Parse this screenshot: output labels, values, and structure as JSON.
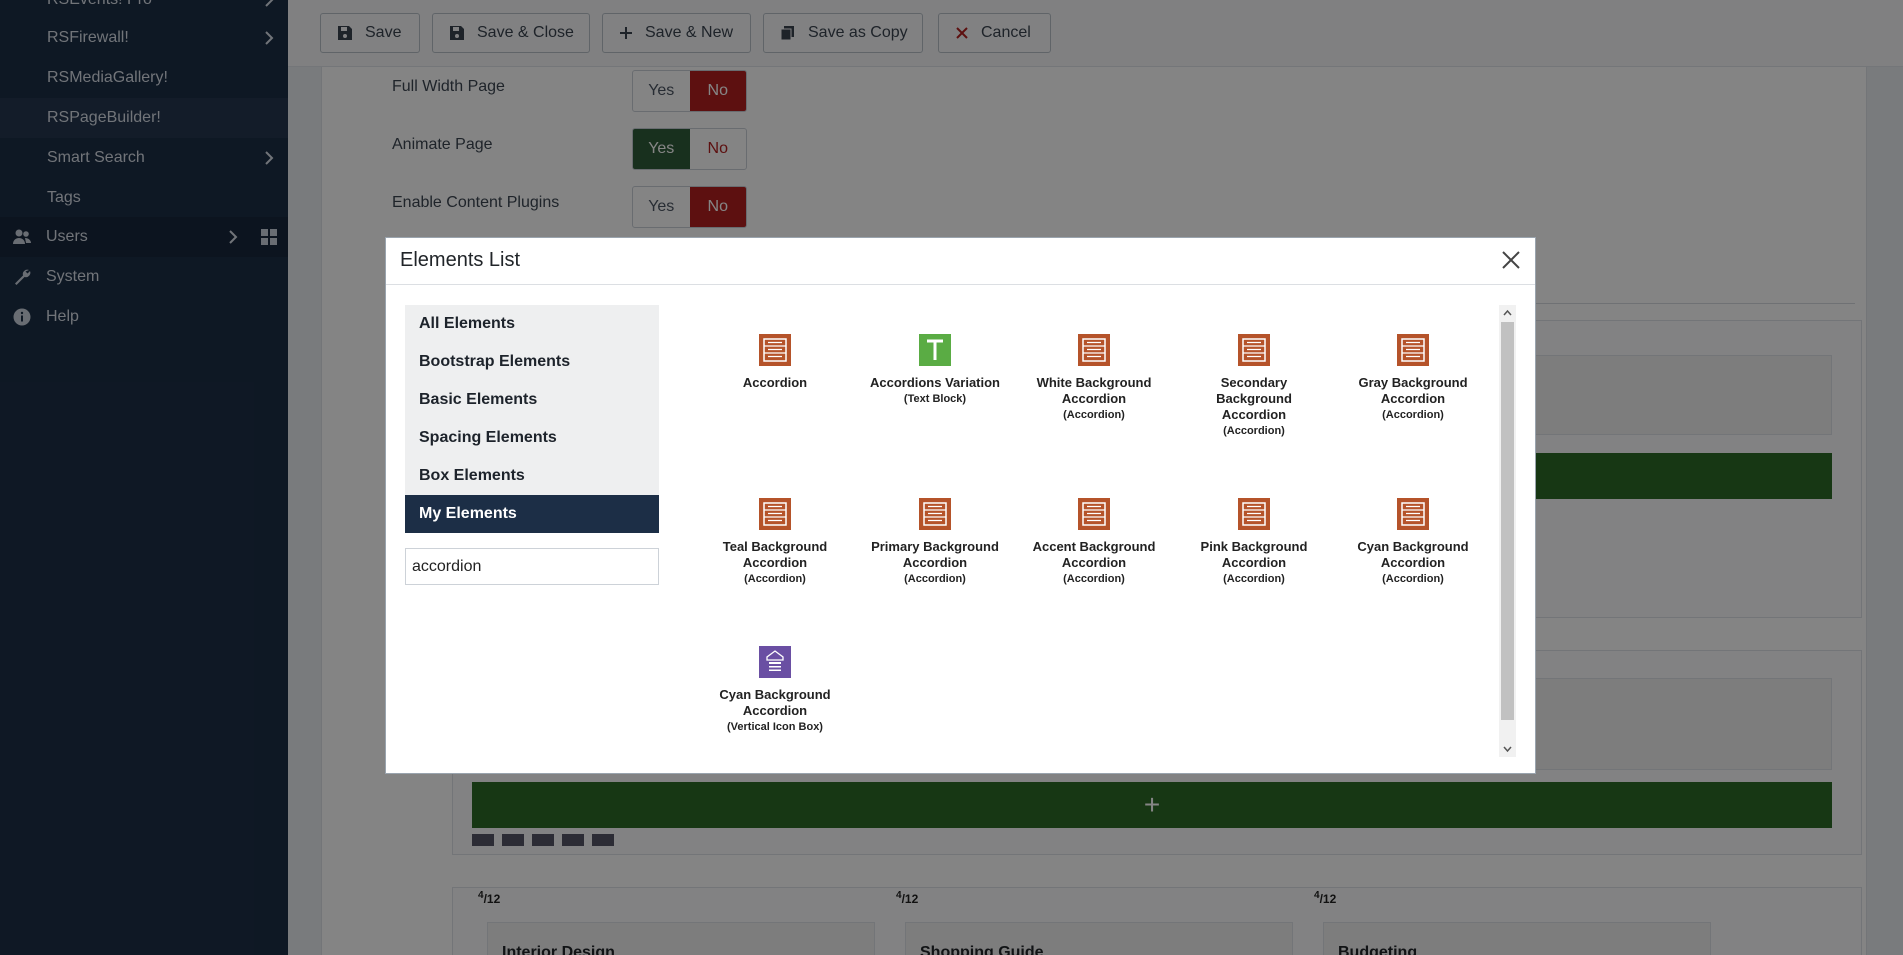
{
  "sidebar": {
    "items": [
      {
        "label": "RSEvents! Pro",
        "chevron": true
      },
      {
        "label": "RSFirewall!",
        "chevron": true
      },
      {
        "label": "RSMediaGallery!",
        "chevron": false
      },
      {
        "label": "RSPageBuilder!",
        "chevron": false,
        "active": true
      },
      {
        "label": "Smart Search",
        "chevron": true
      },
      {
        "label": "Tags",
        "chevron": false
      }
    ],
    "top_items": [
      {
        "label": "Users",
        "icon": "users-icon"
      },
      {
        "label": "System",
        "icon": "wrench-icon"
      },
      {
        "label": "Help",
        "icon": "info-icon"
      }
    ]
  },
  "toolbar": {
    "save": "Save",
    "save_close": "Save & Close",
    "save_new": "Save & New",
    "save_copy": "Save as Copy",
    "cancel": "Cancel"
  },
  "options": [
    {
      "label": "Full Width Page",
      "yes": "Yes",
      "no": "No",
      "value": "No"
    },
    {
      "label": "Animate Page",
      "yes": "Yes",
      "no": "No",
      "value": "Yes"
    },
    {
      "label": "Enable Content Plugins",
      "yes": "Yes",
      "no": "No",
      "value": "No"
    }
  ],
  "builder": {
    "fraction_num": "4",
    "fraction_den": "12",
    "partial_titles": [
      "Interior Design",
      "Shopping Guide",
      "Budgeting"
    ]
  },
  "modal": {
    "title": "Elements List",
    "categories": [
      "All Elements",
      "Bootstrap Elements",
      "Basic Elements",
      "Spacing Elements",
      "Box Elements",
      "My Elements"
    ],
    "active_category": "My Elements",
    "search_value": "accordion",
    "elements": [
      {
        "name": "Accordion",
        "sub": "",
        "icon": "accordion-icon"
      },
      {
        "name": "Accordions Variation",
        "sub": "(Text Block)",
        "icon": "text-block-icon"
      },
      {
        "name": "White Background Accordion",
        "sub": "(Accordion)",
        "icon": "accordion-icon"
      },
      {
        "name": "Secondary Background Accordion",
        "sub": "(Accordion)",
        "icon": "accordion-icon"
      },
      {
        "name": "Gray Background Accordion",
        "sub": "(Accordion)",
        "icon": "accordion-icon"
      },
      {
        "name": "Teal Background Accordion",
        "sub": "(Accordion)",
        "icon": "accordion-icon"
      },
      {
        "name": "Primary Background Accordion",
        "sub": "(Accordion)",
        "icon": "accordion-icon"
      },
      {
        "name": "Accent Background Accordion",
        "sub": "(Accordion)",
        "icon": "accordion-icon"
      },
      {
        "name": "Pink Background Accordion",
        "sub": "(Accordion)",
        "icon": "accordion-icon"
      },
      {
        "name": "Cyan Background Accordion",
        "sub": "(Accordion)",
        "icon": "accordion-icon"
      },
      {
        "name": "Cyan Background Accordion",
        "sub": "(Vertical Icon Box)",
        "icon": "vertical-icon-box-icon"
      }
    ]
  },
  "colors": {
    "sidebar": "#1c2e46",
    "accordion_icon": "#b5532a",
    "text_block_icon": "#5aac44",
    "icon_box_icon": "#6a4fa3",
    "no_active": "#b32020",
    "yes_active": "#2e5d3a",
    "green_bar": "#2d6a27"
  }
}
